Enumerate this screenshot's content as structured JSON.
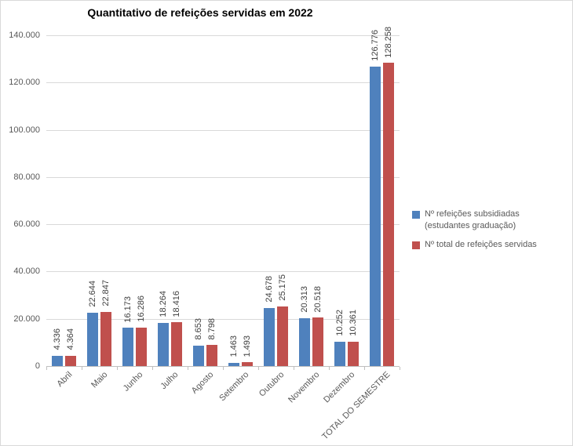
{
  "chart_data": {
    "type": "bar",
    "title": "Quantitativo de refeições servidas em 2022",
    "categories": [
      "Abril",
      "Maio",
      "Junho",
      "Julho",
      "Agosto",
      "Setembro",
      "Outubro",
      "Novembro",
      "Dezembro",
      "TOTAL DO SEMESTRE"
    ],
    "series": [
      {
        "name": "Nº refeições subsidiadas (estudantes graduação)",
        "color": "#4F81BD",
        "values": [
          4336,
          22644,
          16173,
          18264,
          8653,
          1463,
          24678,
          20313,
          10252,
          126776
        ],
        "labels": [
          "4.336",
          "22.644",
          "16.173",
          "18.264",
          "8.653",
          "1.463",
          "24.678",
          "20.313",
          "10.252",
          "126.776"
        ]
      },
      {
        "name": "Nº total de refeições servidas",
        "color": "#C0504D",
        "values": [
          4364,
          22847,
          16286,
          18416,
          8798,
          1493,
          25175,
          20518,
          10361,
          128258
        ],
        "labels": [
          "4.364",
          "22.847",
          "16.286",
          "18.416",
          "8.798",
          "1.493",
          "25.175",
          "20.518",
          "10.361",
          "128.258"
        ]
      }
    ],
    "ylim": [
      0,
      140000
    ],
    "ytick_interval": 20000,
    "ytick_labels": [
      "0",
      "20.000",
      "40.000",
      "60.000",
      "80.000",
      "100.000",
      "120.000",
      "140.000"
    ],
    "grid": true,
    "legend_position": "right",
    "data_labels": "rotated-90-outside-end",
    "x_label_rotation": 45,
    "colors": {
      "gridline": "#d9d9d9",
      "axis_line": "#bfbfbf",
      "axis_text": "#595959",
      "data_label_text": "#404040",
      "title_text": "#000000",
      "background": "#ffffff"
    }
  }
}
